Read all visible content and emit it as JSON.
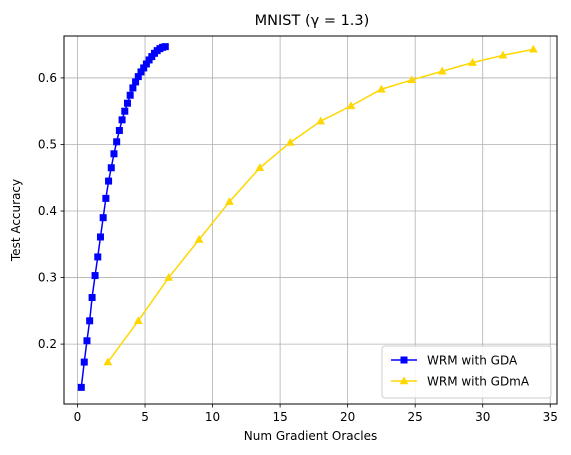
{
  "chart_data": {
    "type": "line",
    "title": "MNIST (γ = 1.3)",
    "xlabel": "Num Gradient Oracles",
    "ylabel": "Test Accuracy",
    "xlim": [
      -1.0,
      35.5
    ],
    "ylim": [
      0.11,
      0.663
    ],
    "xticks": [
      0,
      5,
      10,
      15,
      20,
      25,
      30,
      35
    ],
    "yticks": [
      0.2,
      0.3,
      0.4,
      0.5,
      0.6
    ],
    "ytick_labels": [
      "0.2",
      "0.3",
      "0.4",
      "0.5",
      "0.6"
    ],
    "grid": true,
    "legend_position": "lower-right",
    "series": [
      {
        "name": "WRM with GDA",
        "color": "#0000ff",
        "marker": "square",
        "x": [
          0.28,
          0.5,
          0.7,
          0.9,
          1.08,
          1.3,
          1.5,
          1.7,
          1.9,
          2.1,
          2.3,
          2.5,
          2.7,
          2.9,
          3.1,
          3.3,
          3.5,
          3.7,
          3.9,
          4.1,
          4.3,
          4.5,
          4.7,
          4.9,
          5.1,
          5.3,
          5.5,
          5.7,
          5.9,
          6.1,
          6.3,
          6.5
        ],
        "y": [
          0.135,
          0.173,
          0.205,
          0.235,
          0.27,
          0.303,
          0.331,
          0.361,
          0.39,
          0.419,
          0.445,
          0.465,
          0.486,
          0.504,
          0.521,
          0.537,
          0.55,
          0.562,
          0.574,
          0.585,
          0.594,
          0.602,
          0.609,
          0.615,
          0.621,
          0.627,
          0.632,
          0.637,
          0.641,
          0.644,
          0.646,
          0.647
        ]
      },
      {
        "name": "WRM with GDmA",
        "color": "#ffd700",
        "marker": "triangle",
        "x": [
          2.25,
          4.5,
          6.75,
          9.0,
          11.25,
          13.5,
          15.75,
          18.0,
          20.25,
          22.5,
          24.75,
          27.0,
          29.25,
          31.5,
          33.75
        ],
        "y": [
          0.173,
          0.235,
          0.3,
          0.357,
          0.414,
          0.465,
          0.503,
          0.535,
          0.558,
          0.583,
          0.597,
          0.61,
          0.623,
          0.634,
          0.643
        ]
      }
    ]
  }
}
